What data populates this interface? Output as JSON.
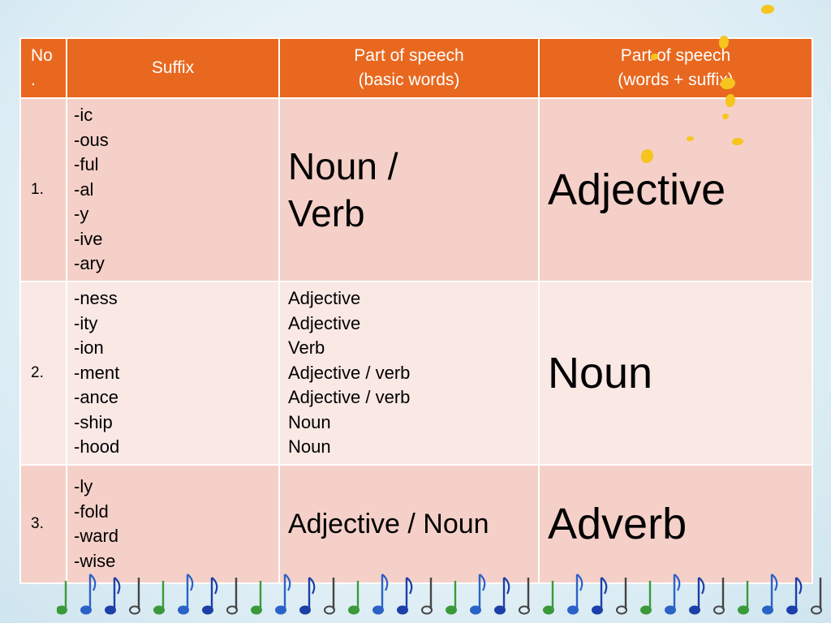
{
  "table": {
    "headers": {
      "no": [
        "No",
        "."
      ],
      "suffix": "Suffix",
      "basic": [
        "Part of speech",
        "(basic words)"
      ],
      "result": [
        "Part of speech",
        "(words + suffix)"
      ]
    },
    "rows": [
      {
        "no": "1.",
        "suffixes": [
          "-ic",
          "-ous",
          "-ful",
          "-al",
          "-y",
          "-ive",
          "-ary"
        ],
        "basic": [
          "Noun /",
          "Verb"
        ],
        "result": "Adjective"
      },
      {
        "no": "2.",
        "suffixes": [
          "-ness",
          "-ity",
          "-ion",
          "-ment",
          "-ance",
          "-ship",
          "-hood"
        ],
        "basic": [
          "Adjective",
          "Adjective",
          "Verb",
          "Adjective / verb",
          "Adjective / verb",
          "Noun",
          "Noun"
        ],
        "result": "Noun"
      },
      {
        "no": "3.",
        "suffixes": [
          "-ly",
          "-fold",
          "-ward",
          "-wise"
        ],
        "basic": [
          "Adjective / Noun"
        ],
        "result": "Adverb"
      }
    ]
  },
  "colors": {
    "header": "#e8681f",
    "row_dark": "#f5d0c8",
    "row_light": "#f9e8e4",
    "decoration_flower": "#f6c51f"
  },
  "decorations": {
    "flowers_icon": "yellow-flower-petals",
    "notes_icon": "music-notes-strip"
  }
}
